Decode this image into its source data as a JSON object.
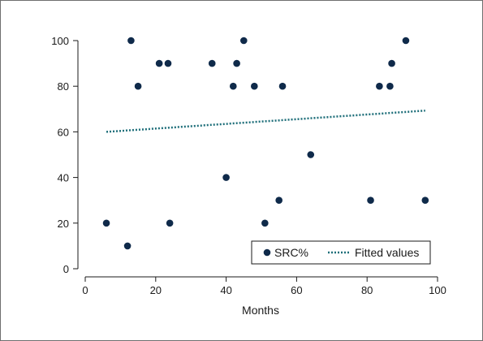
{
  "chart_data": {
    "type": "scatter",
    "title": "",
    "xlabel": "Months",
    "ylabel": "",
    "xlim": [
      0,
      100
    ],
    "ylim": [
      0,
      100
    ],
    "xticks": [
      0,
      20,
      40,
      60,
      80,
      100
    ],
    "yticks": [
      0,
      20,
      40,
      60,
      80,
      100
    ],
    "grid": false,
    "legend_position": "bottom-right",
    "colors": {
      "points": "#0f2a4a",
      "fit": "#1f6f7a",
      "axis": "#1a1a1a"
    },
    "series": [
      {
        "name": "SRC%",
        "kind": "scatter",
        "x": [
          6,
          12,
          13,
          15,
          21,
          23.5,
          24,
          36,
          40,
          42,
          43,
          45,
          48,
          51,
          55,
          56,
          64,
          81,
          83.5,
          86.5,
          87,
          91,
          96.5
        ],
        "y": [
          20,
          10,
          100,
          80,
          90,
          90,
          20,
          90,
          40,
          80,
          90,
          100,
          80,
          20,
          30,
          80,
          50,
          30,
          80,
          80,
          90,
          100,
          30
        ]
      },
      {
        "name": "Fitted values",
        "kind": "line",
        "style": "dotted",
        "x": [
          6,
          96.5
        ],
        "y": [
          60,
          69.3
        ]
      }
    ]
  }
}
